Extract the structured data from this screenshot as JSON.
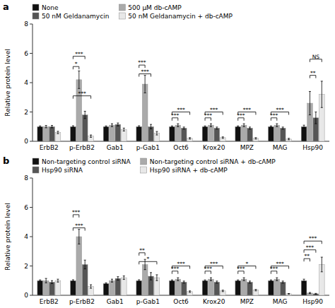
{
  "chart_data": [
    {
      "type": "bar",
      "title": "a",
      "ylabel": "Relative protein level",
      "categories": [
        "ErbB2",
        "p-ErbB2",
        "Gab1",
        "p-Gab1",
        "Oct6",
        "Krox20",
        "MPZ",
        "MAG",
        "Hsp90"
      ],
      "series": [
        {
          "name": "None",
          "color": "#111111",
          "values": [
            1.0,
            1.0,
            1.0,
            1.0,
            1.0,
            1.0,
            1.0,
            1.0,
            1.0
          ],
          "errors": [
            0.05,
            0.06,
            0.05,
            0.06,
            0.05,
            0.05,
            0.05,
            0.05,
            0.1
          ]
        },
        {
          "name": "500 μM db-cAMP",
          "color": "#aaaaaa",
          "values": [
            1.0,
            4.2,
            1.1,
            3.9,
            1.1,
            1.1,
            1.1,
            1.1,
            2.6
          ],
          "errors": [
            0.08,
            0.6,
            0.1,
            0.6,
            0.1,
            0.1,
            0.1,
            0.1,
            0.8
          ]
        },
        {
          "name": "50 nM Geldanamycin",
          "color": "#555555",
          "values": [
            1.0,
            1.8,
            1.15,
            1.0,
            0.9,
            0.9,
            0.9,
            0.9,
            1.6
          ],
          "errors": [
            0.08,
            0.25,
            0.1,
            0.15,
            0.07,
            0.07,
            0.07,
            0.07,
            0.4
          ]
        },
        {
          "name": "50 nM Geldanamycin + db-cAMP",
          "color": "#e8e8e8",
          "values": [
            0.6,
            0.35,
            0.8,
            0.55,
            0.2,
            0.25,
            0.2,
            0.15,
            3.2
          ],
          "errors": [
            0.08,
            0.08,
            0.1,
            0.12,
            0.05,
            0.05,
            0.05,
            0.05,
            0.9
          ]
        }
      ],
      "ylim": [
        0,
        8
      ],
      "yticks": [
        0,
        2,
        4,
        6,
        8
      ],
      "grid": false,
      "legend": "upper left",
      "annotations": [
        {
          "text": "*",
          "category": "p-ErbB2",
          "from": 0,
          "to": 1,
          "y": 5.1
        },
        {
          "text": "***",
          "category": "p-ErbB2",
          "from": 0,
          "to": 2,
          "y": 5.8
        },
        {
          "text": "***",
          "category": "p-ErbB2",
          "from": 0,
          "to": 3,
          "y": 3.1
        },
        {
          "text": "***",
          "category": "p-Gab1",
          "from": 0,
          "to": 1,
          "y": 5.2
        },
        {
          "text": "***",
          "category": "p-Gab1",
          "from": 0,
          "to": 2,
          "y": 4.6
        },
        {
          "text": "***",
          "category": "Oct6",
          "from": 0,
          "to": 1,
          "y": 1.6
        },
        {
          "text": "***",
          "category": "Oct6",
          "from": 0,
          "to": 3,
          "y": 2.0
        },
        {
          "text": "***",
          "category": "Krox20",
          "from": 0,
          "to": 1,
          "y": 1.6
        },
        {
          "text": "***",
          "category": "Krox20",
          "from": 0,
          "to": 3,
          "y": 2.0
        },
        {
          "text": "***",
          "category": "MPZ",
          "from": 0,
          "to": 1,
          "y": 1.6
        },
        {
          "text": "***",
          "category": "MPZ",
          "from": 0,
          "to": 3,
          "y": 2.0
        },
        {
          "text": "***",
          "category": "MAG",
          "from": 0,
          "to": 1,
          "y": 1.6
        },
        {
          "text": "***",
          "category": "MAG",
          "from": 0,
          "to": 3,
          "y": 2.0
        },
        {
          "text": "**",
          "category": "Hsp90",
          "from": 1,
          "to": 2,
          "y": 4.5
        },
        {
          "text": "NS",
          "category": "Hsp90",
          "from": 1,
          "to": 3,
          "y": 5.6
        }
      ]
    },
    {
      "type": "bar",
      "title": "b",
      "ylabel": "Relative protein level",
      "categories": [
        "ErbB2",
        "p-ErbB2",
        "Gab1",
        "p-Gab1",
        "Oct6",
        "Krox20",
        "MPZ",
        "MAG",
        "Hsp90"
      ],
      "series": [
        {
          "name": "Non-targeting control siRNA",
          "color": "#111111",
          "values": [
            1.0,
            1.0,
            0.8,
            1.0,
            1.0,
            1.0,
            1.0,
            1.0,
            1.0
          ],
          "errors": [
            0.05,
            0.06,
            0.05,
            0.06,
            0.05,
            0.05,
            0.05,
            0.05,
            0.1
          ]
        },
        {
          "name": "Non-targeting control siRNA + db-cAMP",
          "color": "#aaaaaa",
          "values": [
            1.0,
            4.0,
            1.0,
            2.1,
            1.1,
            1.1,
            1.1,
            1.1,
            0.15
          ],
          "errors": [
            0.15,
            0.5,
            0.1,
            0.35,
            0.1,
            0.1,
            0.1,
            0.1,
            0.04
          ]
        },
        {
          "name": "Hsp90 siRNA",
          "color": "#555555",
          "values": [
            0.9,
            2.1,
            1.15,
            1.3,
            0.9,
            0.9,
            0.9,
            0.9,
            0.1
          ],
          "errors": [
            0.1,
            0.3,
            0.12,
            0.25,
            0.07,
            0.07,
            0.07,
            0.07,
            0.03
          ]
        },
        {
          "name": "Hsp90 siRNA + db-cAMP",
          "color": "#e8e8e8",
          "values": [
            1.0,
            0.6,
            1.2,
            1.2,
            0.25,
            0.3,
            0.35,
            0.1,
            2.1
          ],
          "errors": [
            0.1,
            0.12,
            0.12,
            0.2,
            0.05,
            0.05,
            0.05,
            0.02,
            0.5
          ]
        }
      ],
      "ylim": [
        0,
        8
      ],
      "yticks": [
        0,
        2,
        4,
        6,
        8
      ],
      "grid": false,
      "legend": "upper left",
      "annotations": [
        {
          "text": "***",
          "category": "p-ErbB2",
          "from": 0,
          "to": 1,
          "y": 5.5
        },
        {
          "text": "***",
          "category": "p-ErbB2",
          "from": 0,
          "to": 2,
          "y": 4.6
        },
        {
          "text": "**",
          "category": "p-Gab1",
          "from": 0,
          "to": 1,
          "y": 2.9
        },
        {
          "text": "*",
          "category": "p-Gab1",
          "from": 0,
          "to": 3,
          "y": 2.3
        },
        {
          "text": "***",
          "category": "Oct6",
          "from": 0,
          "to": 1,
          "y": 1.65
        },
        {
          "text": "***",
          "category": "Oct6",
          "from": 0,
          "to": 3,
          "y": 2.0
        },
        {
          "text": "***",
          "category": "Krox20",
          "from": 0,
          "to": 1,
          "y": 1.65
        },
        {
          "text": "***",
          "category": "Krox20",
          "from": 0,
          "to": 3,
          "y": 2.0
        },
        {
          "text": "***",
          "category": "MPZ",
          "from": 0,
          "to": 1,
          "y": 1.65
        },
        {
          "text": "*",
          "category": "MPZ",
          "from": 0,
          "to": 3,
          "y": 2.0
        },
        {
          "text": "***",
          "category": "MAG",
          "from": 0,
          "to": 1,
          "y": 1.65
        },
        {
          "text": "***",
          "category": "MAG",
          "from": 0,
          "to": 3,
          "y": 2.0
        },
        {
          "text": "**",
          "category": "Hsp90",
          "from": 0,
          "to": 1,
          "y": 2.5
        },
        {
          "text": "***",
          "category": "Hsp90",
          "from": 0,
          "to": 2,
          "y": 3.1
        },
        {
          "text": "***",
          "category": "Hsp90",
          "from": 0,
          "to": 3,
          "y": 3.7
        }
      ]
    }
  ]
}
